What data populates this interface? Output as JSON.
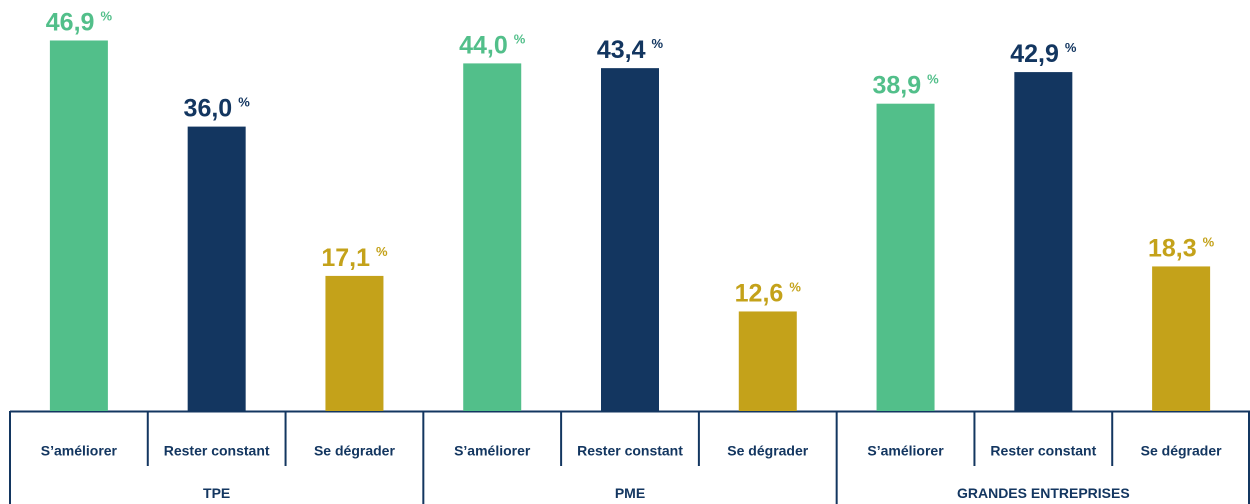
{
  "chart_data": {
    "type": "grouped_bar",
    "categories": [
      "TPE",
      "PME",
      "GRANDES ENTREPRISES"
    ],
    "series": [
      {
        "name": "S’améliorer",
        "color": "#52bf8a",
        "values": [
          46.9,
          44.0,
          38.9
        ],
        "value_labels": [
          "46,9",
          "44,0",
          "38,9"
        ]
      },
      {
        "name": "Rester constant",
        "color": "#133660",
        "values": [
          36.0,
          43.4,
          42.9
        ],
        "value_labels": [
          "36,0",
          "43,4",
          "42,9"
        ]
      },
      {
        "name": "Se dégrader",
        "color": "#c4a21a",
        "values": [
          17.1,
          12.6,
          18.3
        ],
        "value_labels": [
          "17,1",
          "12,6",
          "18,3"
        ]
      }
    ],
    "unit": "%",
    "ylim": [
      0,
      50
    ]
  }
}
